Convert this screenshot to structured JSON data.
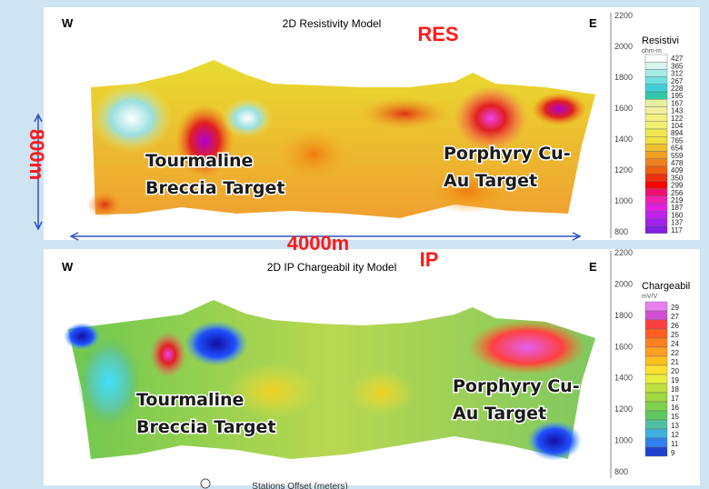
{
  "res_panel": {
    "title": "2D Resistivity Model",
    "tag": "RES",
    "west": "W",
    "east": "E",
    "elevation_ticks": [
      "2200",
      "2000",
      "1800",
      "1600",
      "1400",
      "1200",
      "1000",
      "800"
    ],
    "legend_title": "Resistivi",
    "legend_unit": "ohm-m",
    "legend_values": [
      "427",
      "365",
      "312",
      "267",
      "228",
      "195",
      "167",
      "143",
      "122",
      "104",
      "894",
      "765",
      "654",
      "559",
      "478",
      "409",
      "350",
      "299",
      "256",
      "219",
      "187",
      "160",
      "137",
      "117"
    ],
    "target_left": [
      "Tourmaline",
      "Breccia Target"
    ],
    "target_right": [
      "Porphyry Cu-",
      "Au Target"
    ]
  },
  "ip_panel": {
    "title": "2D IP Chargeabil ity Model",
    "tag": "IP",
    "west": "W",
    "east": "E",
    "elevation_ticks": [
      "2200",
      "2000",
      "1800",
      "1600",
      "1400",
      "1200",
      "1000",
      "800"
    ],
    "legend_title": "Chargeabil",
    "legend_unit": "mV/V",
    "legend_values": [
      "29",
      "27",
      "26",
      "25",
      "24",
      "22",
      "21",
      "20",
      "19",
      "18",
      "17",
      "16",
      "15",
      "13",
      "12",
      "11",
      "9"
    ],
    "target_left": [
      "Tourmaline",
      "Breccia Target"
    ],
    "target_right": [
      "Porphyry Cu-",
      "Au Target"
    ],
    "x_axis_label": "Stations Offset (meters)"
  },
  "annotations": {
    "depth": "800m",
    "length": "4000m"
  }
}
